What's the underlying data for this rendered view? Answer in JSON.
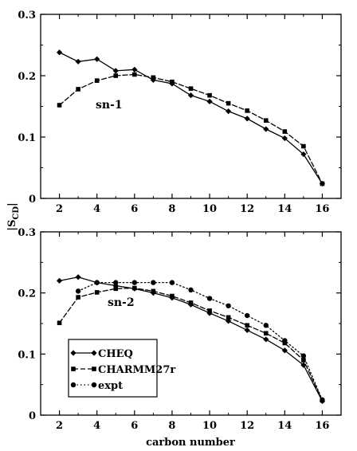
{
  "chart_data": [
    {
      "type": "line",
      "annotation": "sn-1",
      "xlabel": "",
      "ylabel": "|S_CD|",
      "xlim": [
        1,
        17
      ],
      "ylim": [
        0,
        0.3
      ],
      "xticks": [
        2,
        4,
        6,
        8,
        10,
        12,
        14,
        16
      ],
      "yticks": [
        0,
        0.1,
        0.2,
        0.3
      ],
      "x": [
        2,
        3,
        4,
        5,
        6,
        7,
        8,
        9,
        10,
        11,
        12,
        13,
        14,
        15,
        16
      ],
      "series": [
        {
          "name": "CHEQ",
          "marker": "diamond",
          "dash": "solid",
          "values": [
            0.238,
            0.223,
            0.227,
            0.208,
            0.21,
            0.193,
            0.187,
            0.168,
            0.158,
            0.142,
            0.13,
            0.113,
            0.098,
            0.072,
            0.024
          ]
        },
        {
          "name": "CHARMM27r",
          "marker": "square",
          "dash": "dashed",
          "values": [
            0.152,
            0.178,
            0.192,
            0.2,
            0.202,
            0.197,
            0.19,
            0.179,
            0.168,
            0.155,
            0.143,
            0.127,
            0.109,
            0.085,
            0.024
          ]
        }
      ]
    },
    {
      "type": "line",
      "annotation": "sn-2",
      "xlabel": "carbon number",
      "ylabel": "|S_CD|",
      "xlim": [
        1,
        17
      ],
      "ylim": [
        0,
        0.3
      ],
      "xticks": [
        2,
        4,
        6,
        8,
        10,
        12,
        14,
        16
      ],
      "yticks": [
        0,
        0.1,
        0.2,
        0.3
      ],
      "legend_position": "bottom-left",
      "series": [
        {
          "name": "CHEQ",
          "marker": "diamond",
          "dash": "solid",
          "x": [
            2,
            3,
            4,
            5,
            6,
            7,
            8,
            9,
            10,
            11,
            12,
            13,
            14,
            15,
            16
          ],
          "values": [
            0.22,
            0.226,
            0.217,
            0.212,
            0.207,
            0.2,
            0.192,
            0.181,
            0.167,
            0.154,
            0.139,
            0.124,
            0.106,
            0.082,
            0.023
          ]
        },
        {
          "name": "CHARMM27r",
          "marker": "square",
          "dash": "dashed",
          "x": [
            2,
            3,
            4,
            5,
            6,
            7,
            8,
            9,
            10,
            11,
            12,
            13,
            14,
            15,
            16
          ],
          "values": [
            0.151,
            0.193,
            0.201,
            0.207,
            0.208,
            0.203,
            0.195,
            0.184,
            0.171,
            0.16,
            0.147,
            0.134,
            0.118,
            0.09,
            0.024
          ]
        },
        {
          "name": "expt",
          "marker": "circle",
          "dash": "dotted",
          "x": [
            3,
            4,
            5,
            6,
            7,
            8,
            9,
            10,
            11,
            12,
            13,
            14,
            15,
            16
          ],
          "values": [
            0.203,
            0.217,
            0.217,
            0.217,
            0.217,
            0.217,
            0.205,
            0.191,
            0.179,
            0.163,
            0.147,
            0.122,
            0.097,
            0.025
          ]
        }
      ]
    }
  ],
  "y_axis_title": "|S",
  "y_axis_subscript": "CD"
}
